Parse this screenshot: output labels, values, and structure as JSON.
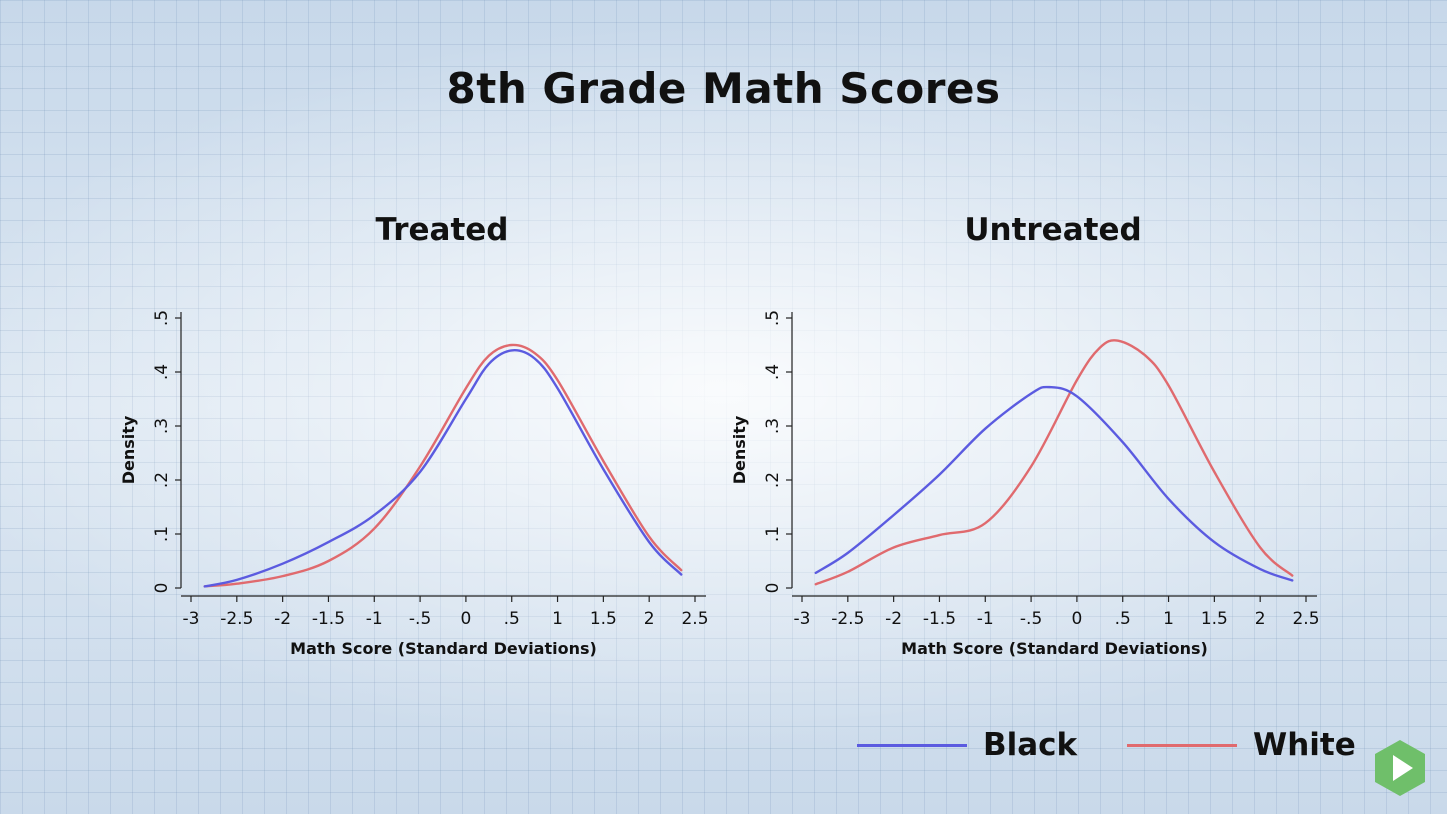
{
  "page": {
    "title": "8th Grade Math Scores"
  },
  "colors": {
    "black_series": "#5b5be0",
    "white_series": "#e06a6e",
    "play_button": "#6fbf6a"
  },
  "icons": {
    "play": "play-icon"
  },
  "legend": [
    {
      "label": "Black",
      "color": "#5b5be0"
    },
    {
      "label": "White",
      "color": "#e06a6e"
    }
  ],
  "chart_data": [
    {
      "type": "line",
      "title": "Treated",
      "xlabel": "Math Score (Standard Deviations)",
      "ylabel": "Density",
      "xlim": [
        -3,
        2.5
      ],
      "ylim": [
        0,
        0.5
      ],
      "x_ticks": [
        "-3",
        "-2.5",
        "-2",
        "-1.5",
        "-1",
        "-.5",
        "0",
        ".5",
        "1",
        "1.5",
        "2",
        "2.5"
      ],
      "y_ticks": [
        "0",
        ".1",
        ".2",
        ".3",
        ".4",
        ".5"
      ],
      "grid": false,
      "series": [
        {
          "name": "Black",
          "color": "#5b5be0",
          "x": [
            -2.85,
            -2.5,
            -2.0,
            -1.5,
            -1.0,
            -0.5,
            0.0,
            0.25,
            0.5,
            0.75,
            1.0,
            1.5,
            2.0,
            2.35
          ],
          "y": [
            0.003,
            0.015,
            0.045,
            0.085,
            0.135,
            0.215,
            0.35,
            0.415,
            0.44,
            0.425,
            0.37,
            0.22,
            0.085,
            0.025
          ]
        },
        {
          "name": "White",
          "color": "#e06a6e",
          "x": [
            -2.85,
            -2.5,
            -2.0,
            -1.5,
            -1.0,
            -0.5,
            0.0,
            0.25,
            0.5,
            0.75,
            1.0,
            1.5,
            2.0,
            2.35
          ],
          "y": [
            0.003,
            0.008,
            0.022,
            0.05,
            0.11,
            0.225,
            0.37,
            0.43,
            0.45,
            0.435,
            0.385,
            0.235,
            0.095,
            0.033
          ]
        }
      ]
    },
    {
      "type": "line",
      "title": "Untreated",
      "xlabel": "Math Score (Standard Deviations)",
      "ylabel": "Density",
      "xlim": [
        -3,
        2.5
      ],
      "ylim": [
        0,
        0.5
      ],
      "x_ticks": [
        "-3",
        "-2.5",
        "-2",
        "-1.5",
        "-1",
        "-.5",
        "0",
        ".5",
        "1",
        "1.5",
        "2",
        "2.5"
      ],
      "y_ticks": [
        "0",
        ".1",
        ".2",
        ".3",
        ".4",
        ".5"
      ],
      "grid": false,
      "series": [
        {
          "name": "Black",
          "color": "#5b5be0",
          "x": [
            -2.85,
            -2.5,
            -2.0,
            -1.5,
            -1.0,
            -0.5,
            -0.3,
            0.0,
            0.5,
            1.0,
            1.5,
            2.0,
            2.35
          ],
          "y": [
            0.028,
            0.065,
            0.135,
            0.21,
            0.295,
            0.36,
            0.372,
            0.355,
            0.27,
            0.165,
            0.085,
            0.035,
            0.014
          ]
        },
        {
          "name": "White",
          "color": "#e06a6e",
          "x": [
            -2.85,
            -2.5,
            -2.0,
            -1.5,
            -1.0,
            -0.5,
            0.0,
            0.25,
            0.45,
            0.75,
            1.0,
            1.5,
            2.0,
            2.35
          ],
          "y": [
            0.007,
            0.03,
            0.075,
            0.098,
            0.12,
            0.225,
            0.385,
            0.445,
            0.458,
            0.43,
            0.375,
            0.215,
            0.075,
            0.023
          ]
        }
      ]
    }
  ]
}
